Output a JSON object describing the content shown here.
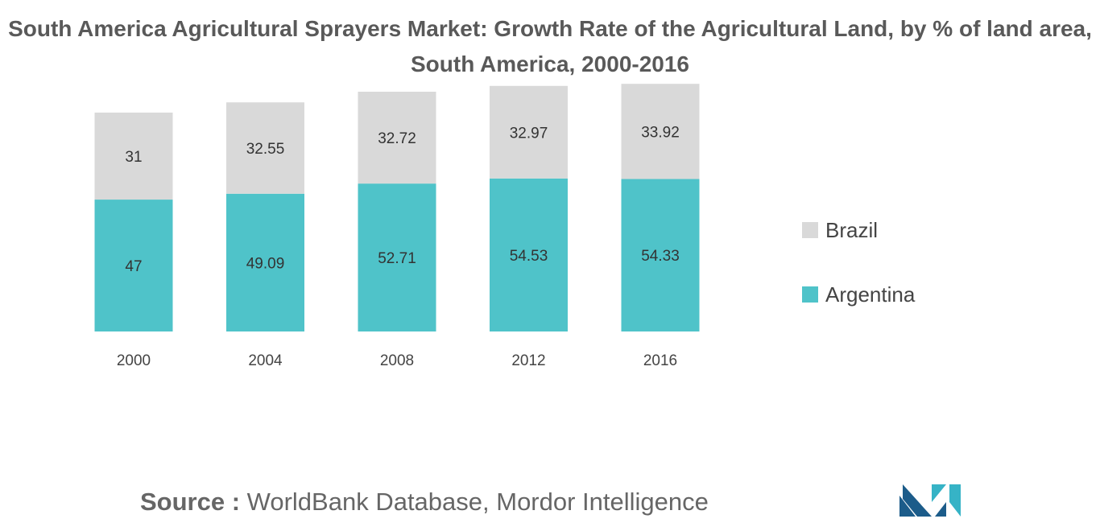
{
  "title": "South America Agricultural Sprayers Market: Growth Rate of the Agricultural Land, by % of land area, South America, 2000-2016",
  "source": {
    "label": "Source :",
    "text": "WorldBank Database, Mordor Intelligence"
  },
  "colors": {
    "brazil": "#d9d9d9",
    "argentina": "#4fc3c9",
    "logo_dark": "#1c5c8a",
    "logo_light": "#36b3c6"
  },
  "logo_icon": "mordor-intelligence-logo-icon",
  "chart_data": {
    "type": "bar",
    "stacked": true,
    "categories": [
      "2000",
      "2004",
      "2008",
      "2012",
      "2016"
    ],
    "series": [
      {
        "name": "Argentina",
        "values": [
          47,
          49.09,
          52.71,
          54.53,
          54.33
        ]
      },
      {
        "name": "Brazil",
        "values": [
          31,
          32.55,
          32.72,
          32.97,
          33.92
        ]
      }
    ],
    "data_labels": {
      "Argentina": [
        "47",
        "49.09",
        "52.71",
        "54.53",
        "54.33"
      ],
      "Brazil": [
        "31",
        "32.55",
        "32.72",
        "32.97",
        "33.92"
      ]
    },
    "legend": {
      "position": "right",
      "entries": [
        "Brazil",
        "Argentina"
      ]
    },
    "xlabel": "",
    "ylabel": "",
    "ylim": [
      0,
      88.3
    ],
    "grid": false,
    "y_axis_visible": false
  }
}
